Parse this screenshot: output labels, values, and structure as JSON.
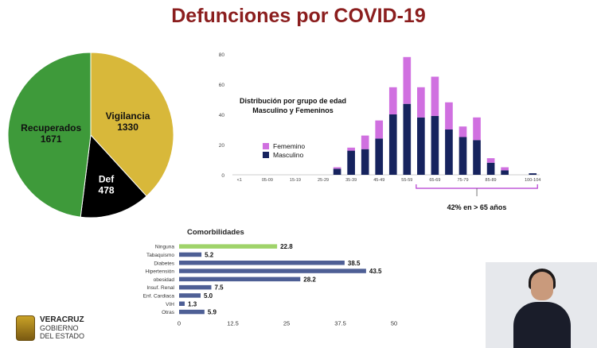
{
  "header": {
    "title": "Defunciones por COVID-19"
  },
  "pie": {
    "slices": [
      {
        "label": "Vigilancia",
        "value": 1330,
        "color": "#d8b83a"
      },
      {
        "label": "Def",
        "value": 478,
        "color": "#000000"
      },
      {
        "label": "Recuperados",
        "value": 1671,
        "color": "#3e9a3a"
      }
    ]
  },
  "histogram": {
    "title_lines": [
      "Distribución por grupo de edad",
      "Masculino y Femeninos"
    ],
    "legend": [
      {
        "label": "Fememino",
        "color": "#d070e0"
      },
      {
        "label": "Masculino",
        "color": "#16235e"
      }
    ],
    "annotation": "42% en > 65 años"
  },
  "comorbidities": {
    "title": "Comorbilidades"
  },
  "footer": {
    "logo_lines": [
      "VERACRUZ",
      "GOBIERNO",
      "DEL ESTADO"
    ]
  },
  "chart_data": [
    {
      "type": "pie",
      "categories": [
        "Vigilancia",
        "Def",
        "Recuperados"
      ],
      "values": [
        1330,
        478,
        1671
      ]
    },
    {
      "type": "bar",
      "stacked": true,
      "title": "Distribución por grupo de edad Masculino y Femeninos",
      "categories": [
        "<1",
        "1-4",
        "05-09",
        "10-14",
        "15-19",
        "20-24",
        "25-29",
        "30-34",
        "35-39",
        "40-44",
        "45-49",
        "50-54",
        "55-59",
        "60-64",
        "65-69",
        "70-74",
        "75-79",
        "80-84",
        "85-89",
        "90-94",
        "95-99",
        "100-104"
      ],
      "tick_labels": [
        "<1",
        "05-09",
        "15-19",
        "25-29",
        "35-39",
        "45-49",
        "55-59",
        "65-69",
        "75-79",
        "85-89",
        "100-104"
      ],
      "series": [
        {
          "name": "Masculino",
          "values": [
            0,
            0,
            0,
            0,
            0,
            0,
            0,
            4,
            16,
            17,
            24,
            40,
            47,
            38,
            39,
            30,
            25,
            23,
            8,
            3,
            0,
            1
          ]
        },
        {
          "name": "Fememino",
          "values": [
            0,
            0,
            0,
            0,
            0,
            0,
            0,
            1,
            2,
            9,
            12,
            18,
            31,
            20,
            26,
            18,
            7,
            15,
            3,
            2,
            0,
            0
          ]
        }
      ],
      "ylim": [
        0,
        80
      ],
      "yticks": [
        0,
        20,
        40,
        60,
        80
      ]
    },
    {
      "type": "bar",
      "orientation": "horizontal",
      "title": "Comorbilidades",
      "categories": [
        "Ninguna",
        "Tabaquismo",
        "Diabetes",
        "Hipertensión",
        "obesidad",
        "Insuf. Renal",
        "Enf. Cardiaca",
        "VIH",
        "Otras"
      ],
      "values": [
        22.8,
        5.2,
        38.5,
        43.5,
        28.2,
        7.5,
        5.0,
        1.3,
        5.9
      ],
      "value_labels": [
        "22.8",
        "5.2",
        "38.5",
        "43.5",
        "28.2",
        "7.5",
        "5.0",
        "1.3",
        "5.9"
      ],
      "colors": [
        "#9fd36a",
        "#4e5f95",
        "#4e5f95",
        "#4e5f95",
        "#4e5f95",
        "#4e5f95",
        "#4e5f95",
        "#4e5f95",
        "#4e5f95"
      ],
      "xlim": [
        0,
        50
      ],
      "xticks": [
        "0",
        "12.5",
        "25",
        "37.5",
        "50"
      ]
    }
  ]
}
